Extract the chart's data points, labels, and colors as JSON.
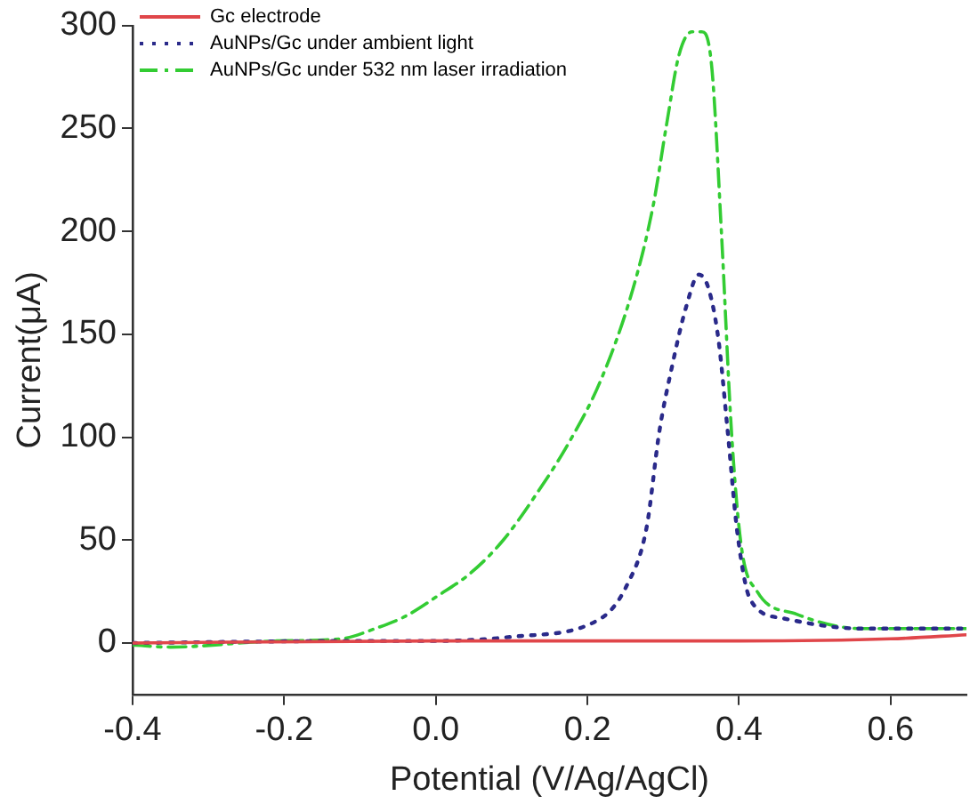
{
  "chart_data": {
    "type": "line",
    "xlabel": "Potential (V/Ag/AgCl)",
    "ylabel": "Current(μA)",
    "xlim": [
      -0.4,
      0.7
    ],
    "xticks": [
      {
        "value": -0.4,
        "label": "-0.4"
      },
      {
        "value": -0.2,
        "label": "-0.2"
      },
      {
        "value": 0,
        "label": "0.0"
      },
      {
        "value": 0.2,
        "label": "0.2"
      },
      {
        "value": 0.4,
        "label": "0.4"
      },
      {
        "value": 0.6,
        "label": "0.6"
      }
    ],
    "ylim": [
      -25,
      300
    ],
    "yticks": [
      0,
      50,
      100,
      150,
      200,
      250,
      300
    ],
    "grid": false,
    "legend": "top left",
    "marker": "none",
    "series": [
      {
        "name": "Gc electrode",
        "color": "#e0464a",
        "line_style": "solid",
        "x": [
          -0.4,
          0.0,
          0.4,
          0.6,
          0.7
        ],
        "values": [
          0,
          1,
          1,
          2,
          4
        ]
      },
      {
        "name": "AuNPs/Gc under ambient light",
        "color": "#2a2a8a",
        "line_style": "dotted",
        "x": [
          -0.4,
          -0.1,
          0.0,
          0.1,
          0.218,
          0.252,
          0.278,
          0.295,
          0.312,
          0.33,
          0.347,
          0.36,
          0.373,
          0.385,
          0.398,
          0.415,
          0.458,
          0.561,
          0.7
        ],
        "values": [
          0,
          1,
          1,
          3,
          12,
          28,
          56,
          103,
          135,
          163,
          179,
          172,
          147,
          103,
          53,
          21,
          12,
          7,
          7
        ]
      },
      {
        "name": "AuNPs/Gc under 532 nm laser irradiation",
        "color": "#33cc33",
        "line_style": "dashdot",
        "x": [
          -0.4,
          -0.35,
          -0.21,
          -0.125,
          -0.08,
          -0.04,
          0.003,
          0.046,
          0.089,
          0.132,
          0.175,
          0.218,
          0.26,
          0.287,
          0.304,
          0.321,
          0.338,
          0.351,
          0.364,
          0.377,
          0.39,
          0.403,
          0.424,
          0.476,
          0.561,
          0.7
        ],
        "values": [
          -1,
          -2,
          1,
          2,
          7,
          13,
          23,
          34,
          50,
          72,
          97,
          128,
          172,
          213,
          251,
          286,
          297,
          297,
          280,
          198,
          103,
          47,
          25,
          14,
          7,
          7
        ]
      }
    ]
  }
}
